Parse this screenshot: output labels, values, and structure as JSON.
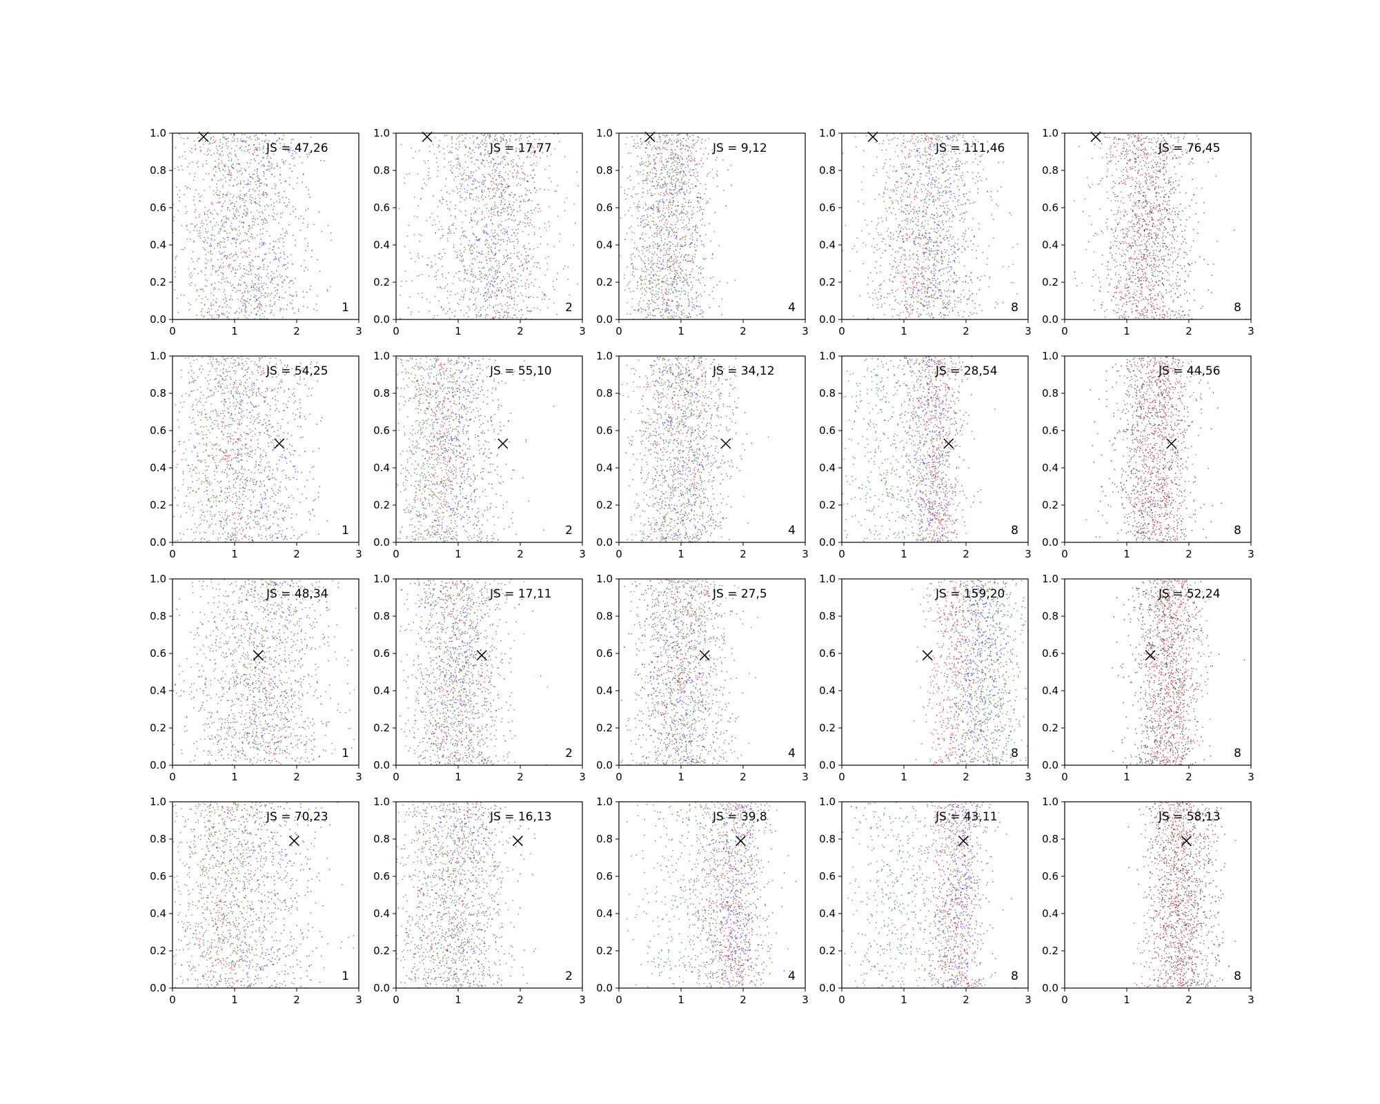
{
  "figure": {
    "layout": "4x5 grid of scatter panels",
    "shared_axes": {
      "xlim": [
        0,
        3
      ],
      "ylim": [
        0,
        1
      ],
      "x_ticks": [
        0,
        1,
        2,
        3
      ],
      "y_ticks": [
        0.0,
        0.2,
        0.4,
        0.6,
        0.8,
        1.0
      ],
      "x_tick_labels": [
        "0",
        "1",
        "2",
        "3"
      ],
      "y_tick_labels": [
        "0.0",
        "0.2",
        "0.4",
        "0.6",
        "0.8",
        "1.0"
      ]
    },
    "colors": {
      "red": "#e41a1c",
      "blue": "#1f1fff",
      "green": "#117711",
      "black": "#222222",
      "marker": "#000000"
    },
    "columns": [
      {
        "corner_label": "1",
        "point_colors": [
          "red",
          "blue",
          "green"
        ]
      },
      {
        "corner_label": "2",
        "point_colors": [
          "red",
          "blue",
          "green"
        ]
      },
      {
        "corner_label": "4",
        "point_colors": [
          "red",
          "blue",
          "green"
        ]
      },
      {
        "corner_label": "8",
        "point_colors": [
          "red",
          "blue",
          "green"
        ]
      },
      {
        "corner_label": "8",
        "point_colors": [
          "red",
          "black"
        ]
      }
    ],
    "rows": [
      {
        "marker": {
          "x": 0.5,
          "y": 0.98
        }
      },
      {
        "marker": {
          "x": 1.72,
          "y": 0.53
        }
      },
      {
        "marker": {
          "x": 1.38,
          "y": 0.59
        }
      },
      {
        "marker": {
          "x": 1.96,
          "y": 0.79
        }
      }
    ],
    "js_labels": [
      [
        "JS = 47,26",
        "JS = 17,77",
        "JS = 9,12",
        "JS = 111,46",
        "JS = 76,45"
      ],
      [
        "JS = 54,25",
        "JS = 55,10",
        "JS = 34,12",
        "JS = 28,54",
        "JS = 44,56"
      ],
      [
        "JS = 48,34",
        "JS = 17,11",
        "JS = 27,5",
        "JS = 159,20",
        "JS = 52,24"
      ],
      [
        "JS = 70,23",
        "JS = 16,13",
        "JS = 39,8",
        "JS = 43,11",
        "JS = 58,13"
      ]
    ]
  },
  "chart_data": {
    "type": "scatter",
    "xlim": [
      0,
      3
    ],
    "ylim": [
      0,
      1
    ],
    "grid": false,
    "panels_note": "scatter clouds of colored points per panel; centers approximate",
    "clusters": [
      [
        [
          {
            "color": "red",
            "cx": 0.9,
            "sx": 0.5
          },
          {
            "color": "green",
            "cx": 0.9,
            "sx": 0.45
          },
          {
            "color": "blue",
            "cx": 1.5,
            "sx": 0.4
          }
        ],
        [
          {
            "color": "red",
            "cx": 1.7,
            "sx": 0.45
          },
          {
            "color": "green",
            "cx": 1.2,
            "sx": 0.6
          },
          {
            "color": "blue",
            "cx": 1.6,
            "sx": 0.4
          }
        ],
        [
          {
            "color": "red",
            "cx": 0.8,
            "sx": 0.3
          },
          {
            "color": "green",
            "cx": 0.7,
            "sx": 0.35
          },
          {
            "color": "blue",
            "cx": 0.9,
            "sx": 0.3
          }
        ],
        [
          {
            "color": "red",
            "cx": 1.2,
            "sx": 0.3
          },
          {
            "color": "green",
            "cx": 1.3,
            "sx": 0.6
          },
          {
            "color": "blue",
            "cx": 1.6,
            "sx": 0.35
          }
        ],
        [
          {
            "color": "red",
            "cx": 1.2,
            "sx": 0.35
          },
          {
            "color": "black",
            "cx": 1.4,
            "sx": 0.4
          }
        ]
      ],
      [
        [
          {
            "color": "red",
            "cx": 0.9,
            "sx": 0.45
          },
          {
            "color": "green",
            "cx": 0.8,
            "sx": 0.4
          },
          {
            "color": "blue",
            "cx": 1.5,
            "sx": 0.4
          }
        ],
        [
          {
            "color": "red",
            "cx": 0.7,
            "sx": 0.35
          },
          {
            "color": "green",
            "cx": 0.6,
            "sx": 0.35
          },
          {
            "color": "blue",
            "cx": 1.1,
            "sx": 0.4
          }
        ],
        [
          {
            "color": "red",
            "cx": 1.0,
            "sx": 0.35
          },
          {
            "color": "green",
            "cx": 0.9,
            "sx": 0.35
          },
          {
            "color": "blue",
            "cx": 1.1,
            "sx": 0.4
          }
        ],
        [
          {
            "color": "red",
            "cx": 1.5,
            "sx": 0.2
          },
          {
            "color": "green",
            "cx": 0.8,
            "sx": 0.45
          },
          {
            "color": "blue",
            "cx": 1.5,
            "sx": 0.25
          }
        ],
        [
          {
            "color": "red",
            "cx": 1.5,
            "sx": 0.25
          },
          {
            "color": "black",
            "cx": 1.4,
            "sx": 0.35
          }
        ]
      ],
      [
        [
          {
            "color": "red",
            "cx": 1.3,
            "sx": 0.55
          },
          {
            "color": "green",
            "cx": 1.4,
            "sx": 0.6
          },
          {
            "color": "blue",
            "cx": 1.5,
            "sx": 0.55
          }
        ],
        [
          {
            "color": "red",
            "cx": 1.0,
            "sx": 0.4
          },
          {
            "color": "green",
            "cx": 0.9,
            "sx": 0.4
          },
          {
            "color": "blue",
            "cx": 1.0,
            "sx": 0.4
          }
        ],
        [
          {
            "color": "red",
            "cx": 1.0,
            "sx": 0.35
          },
          {
            "color": "green",
            "cx": 1.1,
            "sx": 0.4
          },
          {
            "color": "blue",
            "cx": 0.9,
            "sx": 0.35
          }
        ],
        [
          {
            "color": "red",
            "cx": 1.8,
            "sx": 0.25
          },
          {
            "color": "green",
            "cx": 2.4,
            "sx": 0.3
          },
          {
            "color": "blue",
            "cx": 2.2,
            "sx": 0.25
          }
        ],
        [
          {
            "color": "red",
            "cx": 1.7,
            "sx": 0.22
          },
          {
            "color": "black",
            "cx": 1.6,
            "sx": 0.3
          }
        ]
      ],
      [
        [
          {
            "color": "red",
            "cx": 0.8,
            "sx": 0.4
          },
          {
            "color": "green",
            "cx": 0.8,
            "sx": 0.4
          },
          {
            "color": "blue",
            "cx": 1.6,
            "sx": 0.45
          }
        ],
        [
          {
            "color": "red",
            "cx": 0.9,
            "sx": 0.4
          },
          {
            "color": "green",
            "cx": 0.8,
            "sx": 0.45
          },
          {
            "color": "blue",
            "cx": 1.1,
            "sx": 0.4
          }
        ],
        [
          {
            "color": "red",
            "cx": 1.8,
            "sx": 0.25
          },
          {
            "color": "green",
            "cx": 1.2,
            "sx": 0.5
          },
          {
            "color": "blue",
            "cx": 1.9,
            "sx": 0.3
          }
        ],
        [
          {
            "color": "red",
            "cx": 1.8,
            "sx": 0.22
          },
          {
            "color": "green",
            "cx": 0.9,
            "sx": 0.5
          },
          {
            "color": "blue",
            "cx": 1.9,
            "sx": 0.25
          }
        ],
        [
          {
            "color": "red",
            "cx": 1.8,
            "sx": 0.25
          },
          {
            "color": "black",
            "cx": 1.9,
            "sx": 0.3
          }
        ]
      ]
    ]
  }
}
